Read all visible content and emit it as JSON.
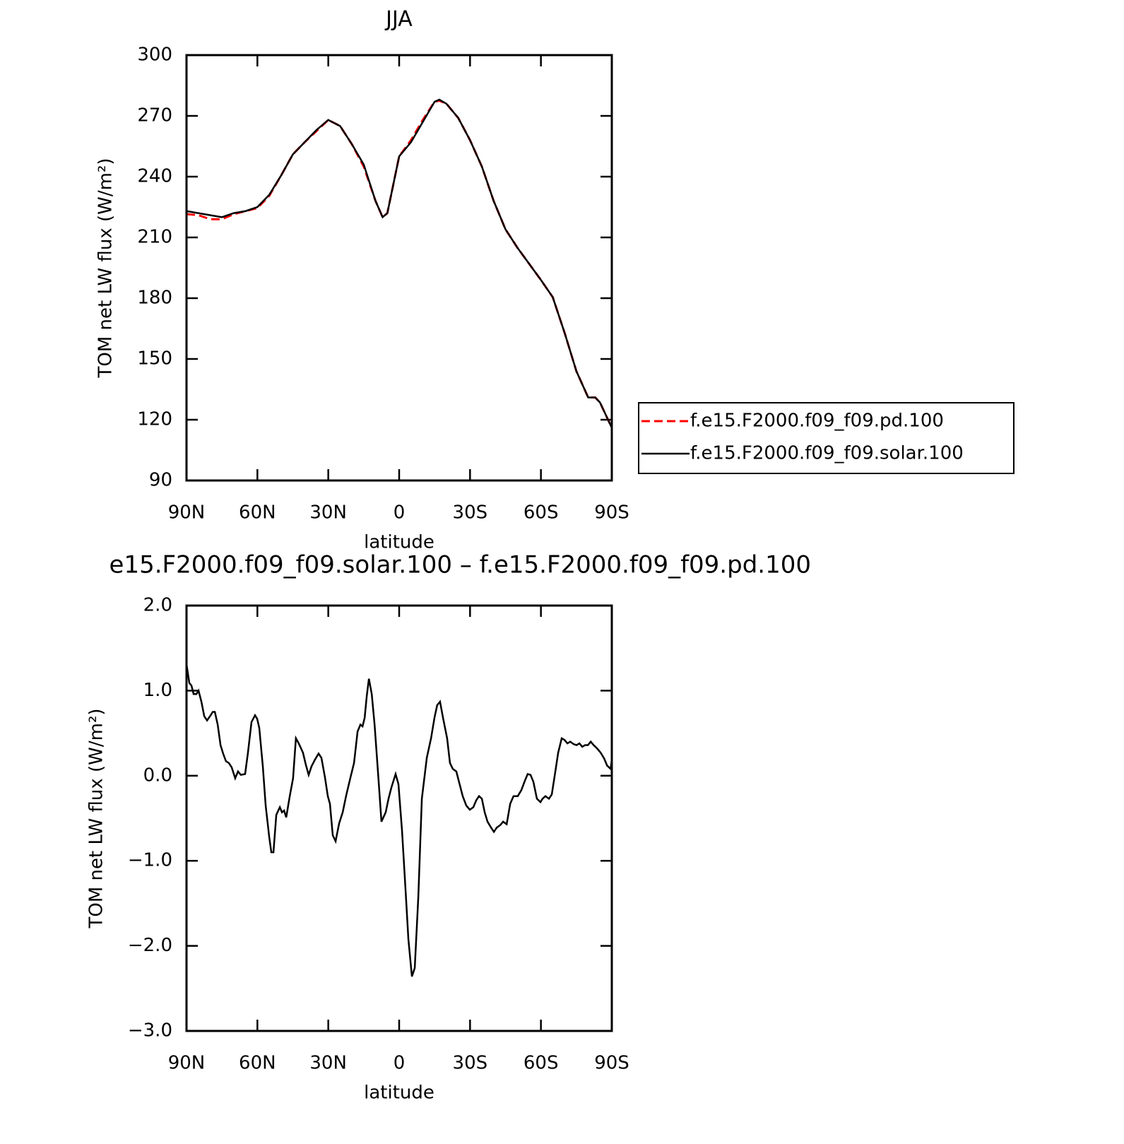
{
  "chart_data": [
    {
      "type": "line",
      "title": "JJA",
      "xlabel": "latitude",
      "ylabel": "TOM net LW flux (W/m²)",
      "x": [
        90,
        85,
        80,
        75,
        70,
        65,
        60,
        55,
        50,
        45,
        40,
        35,
        30,
        25,
        20,
        15,
        10,
        7,
        5,
        0,
        -5,
        -10,
        -15,
        -17,
        -20,
        -25,
        -30,
        -35,
        -40,
        -45,
        -50,
        -55,
        -60,
        -65,
        -70,
        -75,
        -80,
        -83,
        -85,
        -90
      ],
      "series": [
        {
          "name": "f.e15.F2000.f09_f09.pd.100",
          "color": "#ff0000",
          "dashed": true,
          "values": [
            221.5,
            221,
            219,
            219,
            221.5,
            223,
            224.5,
            230.5,
            240.5,
            251,
            257,
            262.5,
            268,
            265,
            256,
            245,
            228,
            220,
            222,
            250,
            258,
            268,
            277,
            277.5,
            276,
            269,
            258,
            245,
            228,
            214,
            205,
            197,
            189,
            180.5,
            163,
            144,
            131,
            131,
            128.5,
            116
          ]
        },
        {
          "name": "f.e15.F2000.f09_f09.solar.100",
          "color": "#000000",
          "dashed": false,
          "values": [
            223,
            222,
            221,
            220,
            222,
            223,
            225,
            231,
            240.5,
            251,
            257,
            263,
            268,
            265,
            256,
            246,
            228,
            220,
            222,
            250,
            257,
            267,
            277,
            278,
            276,
            269,
            258,
            245,
            228,
            214,
            205,
            197,
            189,
            180.5,
            163,
            144,
            131,
            131,
            128.5,
            116
          ]
        }
      ],
      "xlim": [
        90,
        -90
      ],
      "xticks": [
        {
          "value": 90,
          "label": "90N"
        },
        {
          "value": 60,
          "label": "60N"
        },
        {
          "value": 30,
          "label": "30N"
        },
        0,
        {
          "value": -30,
          "label": "30S"
        },
        {
          "value": -60,
          "label": "60S"
        },
        {
          "value": -90,
          "label": "90S"
        }
      ],
      "ylim": [
        90,
        300
      ],
      "yticks": [
        90,
        120,
        150,
        180,
        210,
        240,
        270,
        300
      ],
      "legend": "outside-right"
    },
    {
      "type": "line",
      "title": "e15.F2000.f09_f09.solar.100 – f.e15.F2000.f09_f09.pd.100",
      "xlabel": "latitude",
      "ylabel": "TOM net LW flux (W/m²)",
      "x": [
        90,
        88.8,
        87.9,
        87.0,
        85.8,
        84.9,
        83.7,
        82.5,
        81.3,
        79.8,
        78.9,
        78.0,
        76.8,
        75.6,
        74.5,
        73.3,
        72.1,
        70.9,
        69.4,
        68.2,
        67.0,
        65.2,
        64.0,
        62.5,
        61.0,
        60.1,
        59.2,
        57.7,
        56.5,
        55.0,
        54.1,
        53.2,
        52.0,
        50.5,
        49.6,
        48.7,
        47.8,
        46.3,
        44.9,
        43.7,
        42.5,
        40.7,
        39.5,
        38.3,
        37.1,
        35.6,
        34.1,
        32.9,
        31.4,
        30.2,
        29.3,
        28.1,
        26.9,
        25.4,
        23.9,
        22.4,
        20.6,
        19.1,
        17.6,
        16.4,
        15.5,
        14.6,
        13.7,
        12.8,
        11.6,
        10.4,
        8.9,
        7.5,
        5.7,
        4.5,
        3.3,
        1.5,
        0.3,
        -1.2,
        -2.7,
        -3.9,
        -5.4,
        -6.6,
        -8.1,
        -9.6,
        -11.7,
        -13.5,
        -15.0,
        -16.1,
        -17.3,
        -18.5,
        -20.3,
        -21.5,
        -22.7,
        -24.2,
        -25.4,
        -26.9,
        -28.4,
        -29.9,
        -31.4,
        -32.6,
        -33.8,
        -35.0,
        -36.2,
        -37.4,
        -38.9,
        -40.1,
        -41.3,
        -42.8,
        -44.0,
        -45.5,
        -47.0,
        -48.4,
        -50.2,
        -51.7,
        -53.2,
        -54.4,
        -55.6,
        -56.8,
        -58.3,
        -59.8,
        -60.7,
        -61.9,
        -63.4,
        -64.6,
        -66.1,
        -67.3,
        -68.8,
        -70.0,
        -71.2,
        -72.4,
        -73.9,
        -75.1,
        -76.3,
        -77.5,
        -78.7,
        -79.9,
        -81.1,
        -82.3,
        -83.8,
        -85.3,
        -86.8,
        -88.0,
        -89.5,
        -90
      ],
      "values": [
        1.31,
        1.09,
        1.06,
        0.96,
        0.96,
        1.0,
        0.87,
        0.7,
        0.65,
        0.71,
        0.75,
        0.75,
        0.6,
        0.36,
        0.26,
        0.17,
        0.15,
        0.1,
        -0.03,
        0.05,
        0.01,
        0.02,
        0.27,
        0.63,
        0.71,
        0.67,
        0.56,
        0.11,
        -0.35,
        -0.72,
        -0.9,
        -0.9,
        -0.46,
        -0.37,
        -0.43,
        -0.41,
        -0.49,
        -0.24,
        -0.03,
        0.44,
        0.38,
        0.27,
        0.13,
        0.01,
        0.11,
        0.19,
        0.26,
        0.21,
        -0.02,
        -0.24,
        -0.33,
        -0.7,
        -0.77,
        -0.56,
        -0.43,
        -0.23,
        -0.02,
        0.15,
        0.52,
        0.6,
        0.58,
        0.68,
        0.94,
        1.14,
        0.96,
        0.6,
        0.02,
        -0.54,
        -0.43,
        -0.27,
        -0.14,
        0.02,
        -0.1,
        -0.64,
        -1.34,
        -1.92,
        -2.36,
        -2.26,
        -1.43,
        -0.27,
        0.21,
        0.44,
        0.69,
        0.83,
        0.87,
        0.69,
        0.44,
        0.15,
        0.08,
        0.05,
        -0.08,
        -0.24,
        -0.35,
        -0.4,
        -0.37,
        -0.29,
        -0.24,
        -0.27,
        -0.43,
        -0.54,
        -0.61,
        -0.66,
        -0.61,
        -0.58,
        -0.54,
        -0.57,
        -0.33,
        -0.24,
        -0.24,
        -0.17,
        -0.06,
        0.02,
        0.01,
        -0.07,
        -0.27,
        -0.31,
        -0.27,
        -0.24,
        -0.27,
        -0.22,
        0.05,
        0.27,
        0.44,
        0.42,
        0.38,
        0.4,
        0.37,
        0.36,
        0.38,
        0.34,
        0.36,
        0.36,
        0.4,
        0.36,
        0.32,
        0.27,
        0.2,
        0.12,
        0.08,
        0.19
      ],
      "color": "#000000",
      "xlim": [
        90,
        -90
      ],
      "xticks": [
        {
          "value": 90,
          "label": "90N"
        },
        {
          "value": 60,
          "label": "60N"
        },
        {
          "value": 30,
          "label": "30N"
        },
        0,
        {
          "value": -30,
          "label": "30S"
        },
        {
          "value": -60,
          "label": "60S"
        },
        {
          "value": -90,
          "label": "90S"
        }
      ],
      "ylim": [
        -3,
        2
      ],
      "yticks": [
        {
          "value": -3,
          "label": "−3.0"
        },
        {
          "value": -2,
          "label": "−2.0"
        },
        {
          "value": -1,
          "label": "−1.0"
        },
        {
          "value": 0,
          "label": "0.0"
        },
        {
          "value": 1,
          "label": "1.0"
        },
        {
          "value": 2,
          "label": "2.0"
        }
      ]
    }
  ]
}
